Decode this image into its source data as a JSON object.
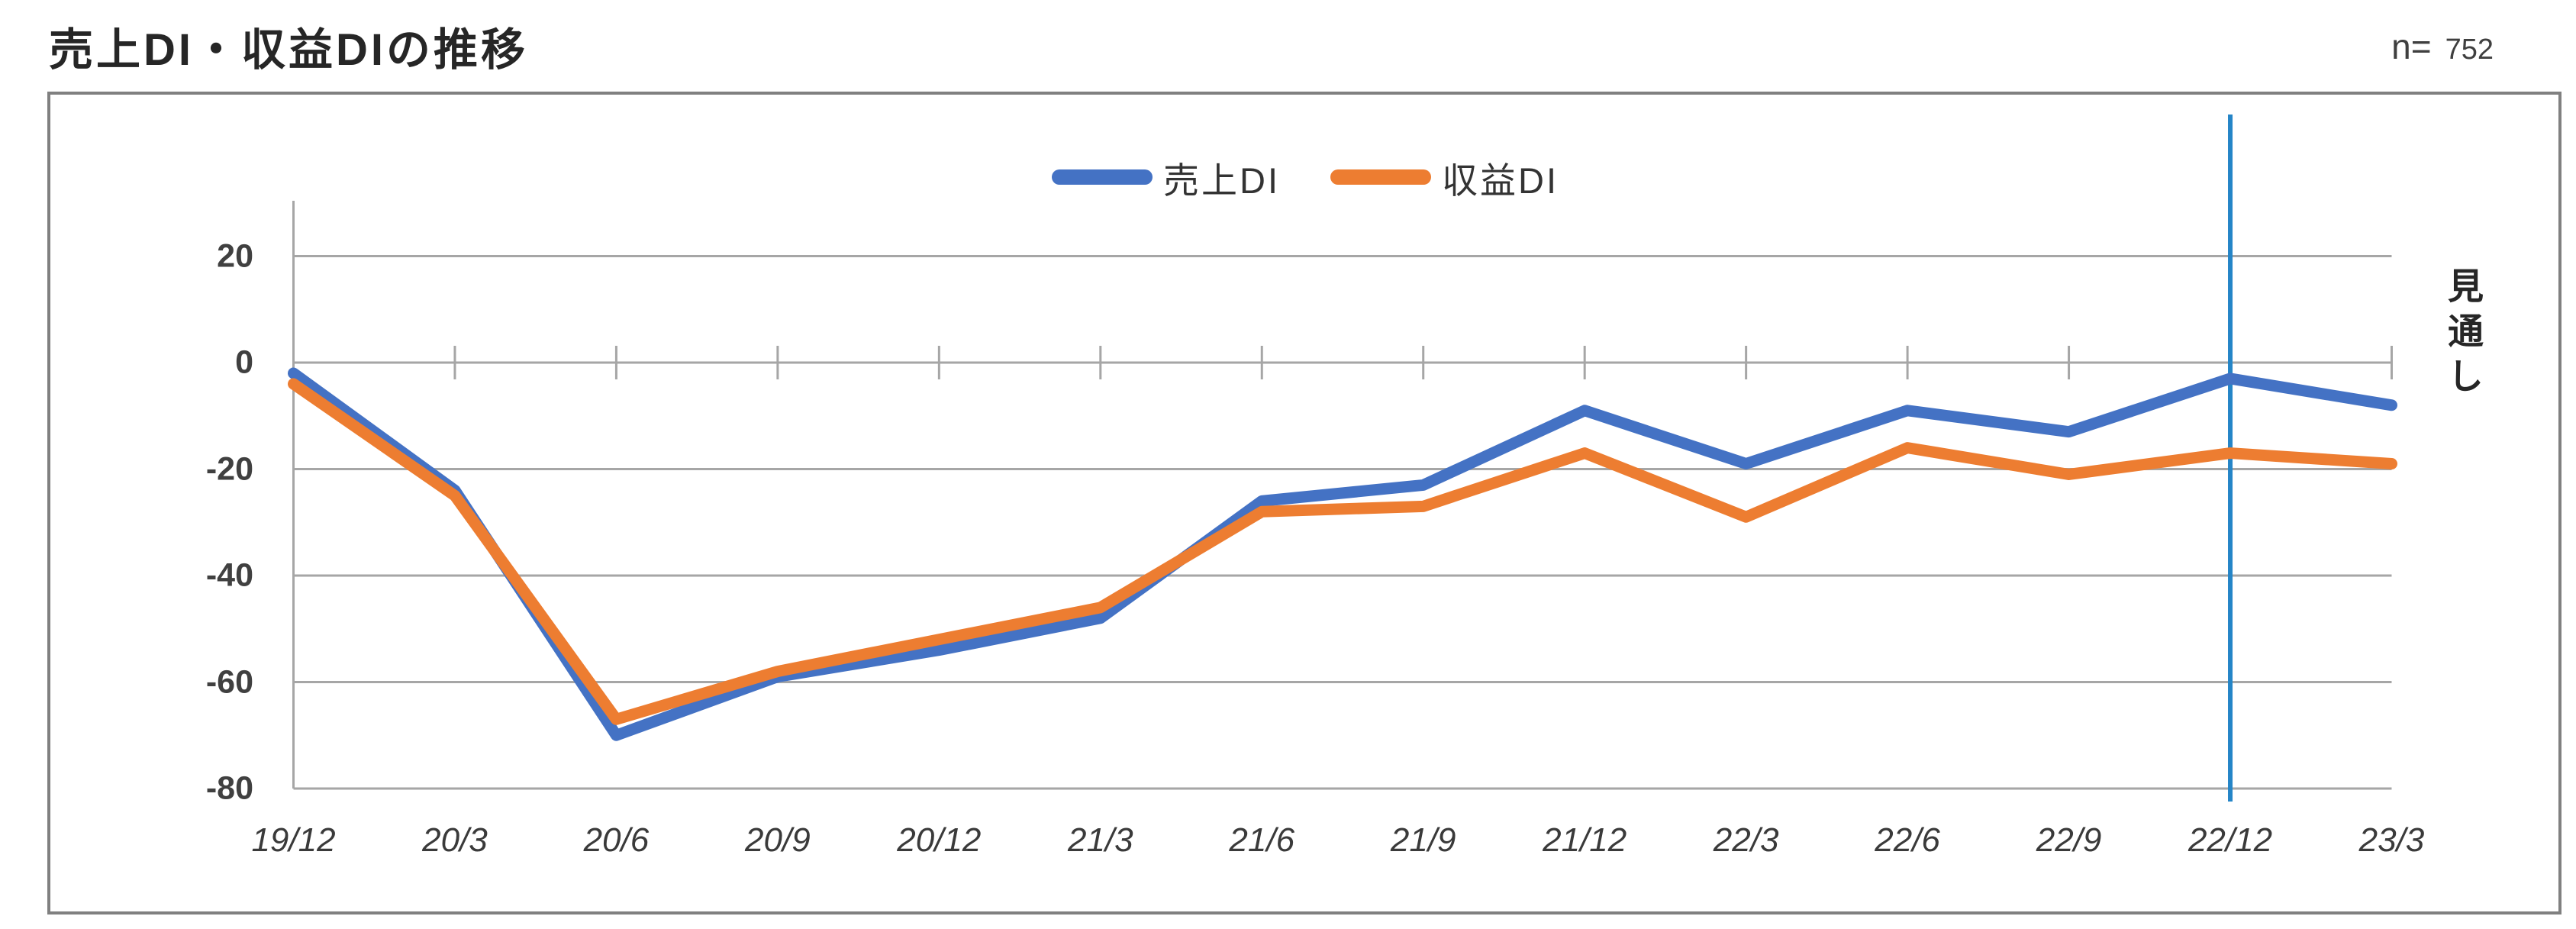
{
  "page": {
    "title": "売上DI・収益DIの推移",
    "sample_label": "n=",
    "sample_value": "752"
  },
  "annotations": {
    "forecast_label": "見通し"
  },
  "chart_data": {
    "type": "line",
    "title": "売上DI・収益DIの推移",
    "sample_n": 752,
    "categories": [
      "19/12",
      "20/3",
      "20/6",
      "20/9",
      "20/12",
      "21/3",
      "21/6",
      "21/9",
      "21/12",
      "22/3",
      "22/6",
      "22/9",
      "22/12",
      "23/3"
    ],
    "series": [
      {
        "name": "売上DI",
        "color": "#4472C4",
        "values": [
          -2,
          -24,
          -70,
          -59,
          -54,
          -48,
          -26,
          -23,
          -9,
          -19,
          -9,
          -13,
          -3,
          -8
        ]
      },
      {
        "name": "収益DI",
        "color": "#ED7D31",
        "values": [
          -4,
          -25,
          -67,
          -58,
          -52,
          -46,
          -28,
          -27,
          -17,
          -29,
          -16,
          -21,
          -17,
          -19
        ]
      }
    ],
    "xlabel": "",
    "ylabel": "",
    "ylim": [
      -80,
      30
    ],
    "yticks": [
      20,
      0,
      -20,
      -40,
      -60,
      -80
    ],
    "grid": true,
    "gridline_color": "#A6A6A6",
    "axis_crosses_at": 0,
    "legend_position": "top-center",
    "marker_line": {
      "category": "22/12",
      "color": "#2585C7",
      "meaning": "見通し"
    }
  }
}
